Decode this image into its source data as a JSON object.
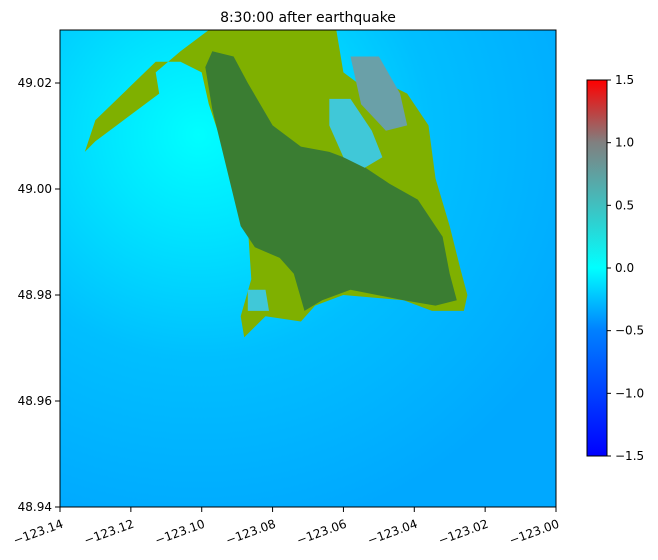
{
  "chart_data": {
    "type": "heatmap",
    "title": "8:30:00 after earthquake",
    "xlabel": "",
    "ylabel": "",
    "xlim": [
      -123.14,
      -123.0
    ],
    "ylim": [
      48.94,
      49.03
    ],
    "xticks": [
      -123.14,
      -123.12,
      -123.1,
      -123.08,
      -123.06,
      -123.04,
      -123.02,
      -123.0
    ],
    "xtick_labels": [
      "−123.14",
      "−123.12",
      "−123.10",
      "−123.08",
      "−123.06",
      "−123.04",
      "−123.02",
      "−123.00"
    ],
    "yticks": [
      48.94,
      48.96,
      48.98,
      49.0,
      49.02
    ],
    "ytick_labels": [
      "48.94",
      "48.96",
      "48.98",
      "49.00",
      "49.02"
    ],
    "colorbar": {
      "min": -1.5,
      "max": 1.5,
      "ticks": [
        -1.5,
        -1.0,
        -0.5,
        0.0,
        0.5,
        1.0,
        1.5
      ],
      "tick_labels": [
        "−1.5",
        "−1.0",
        "−0.5",
        "0.0",
        "0.5",
        "1.0",
        "1.5"
      ],
      "stops": [
        {
          "value": -1.5,
          "color": "#0000ff"
        },
        {
          "value": -0.5,
          "color": "#0080ff"
        },
        {
          "value": 0.0,
          "color": "#00ffff"
        },
        {
          "value": 0.5,
          "color": "#40c0c0"
        },
        {
          "value": 1.0,
          "color": "#808080"
        },
        {
          "value": 1.5,
          "color": "#ff0000"
        }
      ]
    },
    "grid": false,
    "land_colors": {
      "lowland": "#7fb000",
      "upland": "#3a7d32"
    },
    "water_colors": {
      "deep": "#00b0ff",
      "shallow": "#00ffff"
    },
    "regions": [
      {
        "name": "land-outline",
        "kind": "lowland",
        "points": [
          [
            -123.098,
            49.03
          ],
          [
            -123.062,
            49.03
          ],
          [
            -123.06,
            49.022
          ],
          [
            -123.054,
            49.019
          ],
          [
            -123.048,
            49.02
          ],
          [
            -123.042,
            49.018
          ],
          [
            -123.036,
            49.012
          ],
          [
            -123.034,
            49.002
          ],
          [
            -123.03,
            48.993
          ],
          [
            -123.027,
            48.985
          ],
          [
            -123.025,
            48.98
          ],
          [
            -123.026,
            48.977
          ],
          [
            -123.035,
            48.977
          ],
          [
            -123.043,
            48.979
          ],
          [
            -123.06,
            48.98
          ],
          [
            -123.068,
            48.978
          ],
          [
            -123.072,
            48.975
          ],
          [
            -123.082,
            48.976
          ],
          [
            -123.088,
            48.972
          ],
          [
            -123.089,
            48.976
          ],
          [
            -123.086,
            48.983
          ],
          [
            -123.087,
            48.993
          ],
          [
            -123.093,
            49.006
          ],
          [
            -123.098,
            49.016
          ],
          [
            -123.1,
            49.022
          ],
          [
            -123.106,
            49.024
          ],
          [
            -123.113,
            49.024
          ],
          [
            -123.13,
            49.013
          ],
          [
            -123.133,
            49.007
          ],
          [
            -123.13,
            49.009
          ],
          [
            -123.112,
            49.018
          ],
          [
            -123.113,
            49.022
          ],
          [
            -123.106,
            49.026
          ]
        ]
      },
      {
        "name": "upland-interior",
        "kind": "upland",
        "points": [
          [
            -123.097,
            49.026
          ],
          [
            -123.091,
            49.025
          ],
          [
            -123.087,
            49.02
          ],
          [
            -123.08,
            49.012
          ],
          [
            -123.072,
            49.008
          ],
          [
            -123.064,
            49.007
          ],
          [
            -123.056,
            49.005
          ],
          [
            -123.047,
            49.001
          ],
          [
            -123.039,
            48.998
          ],
          [
            -123.032,
            48.991
          ],
          [
            -123.03,
            48.984
          ],
          [
            -123.028,
            48.979
          ],
          [
            -123.034,
            48.978
          ],
          [
            -123.043,
            48.979
          ],
          [
            -123.058,
            48.981
          ],
          [
            -123.066,
            48.979
          ],
          [
            -123.071,
            48.977
          ],
          [
            -123.074,
            48.984
          ],
          [
            -123.078,
            48.987
          ],
          [
            -123.085,
            48.989
          ],
          [
            -123.089,
            48.993
          ],
          [
            -123.093,
            49.004
          ],
          [
            -123.097,
            49.015
          ],
          [
            -123.099,
            49.023
          ]
        ]
      },
      {
        "name": "bay-north",
        "kind": "cyan",
        "points": [
          [
            -123.064,
            49.017
          ],
          [
            -123.058,
            49.017
          ],
          [
            -123.052,
            49.011
          ],
          [
            -123.049,
            49.006
          ],
          [
            -123.054,
            49.004
          ],
          [
            -123.06,
            49.006
          ],
          [
            -123.064,
            49.012
          ]
        ]
      },
      {
        "name": "bay-northeast",
        "kind": "mixed",
        "points": [
          [
            -123.058,
            49.025
          ],
          [
            -123.05,
            49.025
          ],
          [
            -123.044,
            49.018
          ],
          [
            -123.042,
            49.012
          ],
          [
            -123.048,
            49.011
          ],
          [
            -123.055,
            49.016
          ]
        ]
      },
      {
        "name": "bay-southwest",
        "kind": "cyan",
        "points": [
          [
            -123.087,
            48.981
          ],
          [
            -123.082,
            48.981
          ],
          [
            -123.081,
            48.977
          ],
          [
            -123.087,
            48.977
          ]
        ]
      }
    ]
  }
}
